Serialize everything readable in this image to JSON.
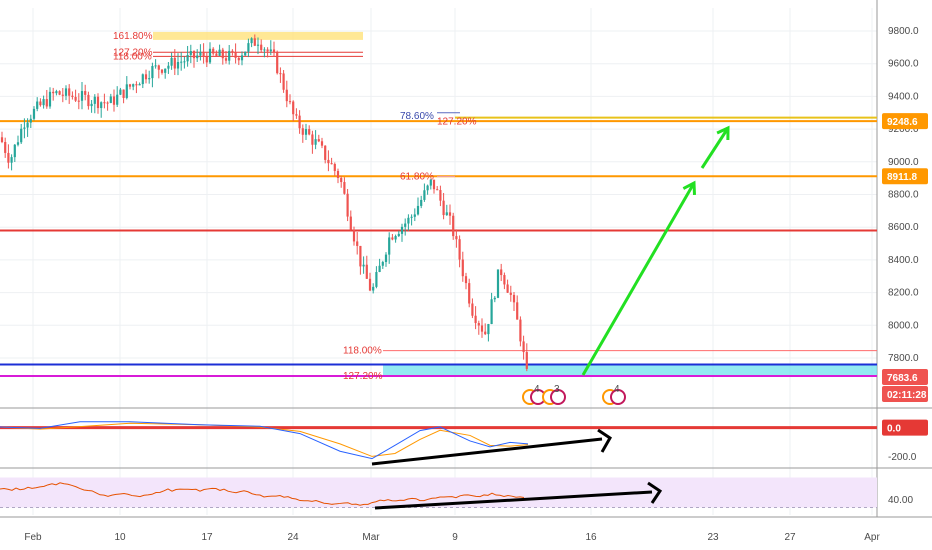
{
  "colors": {
    "up": "#26a69a",
    "down": "#ef5350",
    "orange_level": "#ff9800",
    "yellow_level": "#e8c21a",
    "red_level": "#e53935",
    "blue_level": "#1c2fd6",
    "magenta_level": "#d81bd8",
    "zone": "#6fe3ee",
    "arrow_green": "#22e022",
    "arrow_black": "#000000",
    "macd_line": "#2962ff",
    "signal_line": "#ff9800",
    "rsi_line": "#e65100",
    "rsi_band": "#f3e5fb"
  },
  "chart_data": [
    {
      "type": "candlestick",
      "title": "",
      "x_ticks": [
        "Feb",
        "10",
        "17",
        "24",
        "Mar",
        "9",
        "16",
        "23",
        "27",
        "Apr"
      ],
      "y_ticks": [
        "9800.0",
        "9600.0",
        "9400.0",
        "9200.0",
        "9000.0",
        "8800.0",
        "8600.0",
        "8400.0",
        "8200.0",
        "8000.0",
        "7800.0"
      ],
      "ylim": [
        7700,
        9900
      ],
      "price_anchors": [
        {
          "date": "Feb",
          "price": 9150
        },
        {
          "date": "Feb",
          "price": 9000
        },
        {
          "date": "10",
          "price": 9430
        },
        {
          "date": "17",
          "price": 9680
        },
        {
          "date": "17",
          "price": 9750
        },
        {
          "date": "24",
          "price": 9650
        },
        {
          "date": "24",
          "price": 9100
        },
        {
          "date": "Mar",
          "price": 8700
        },
        {
          "date": "Mar",
          "price": 8200
        },
        {
          "date": "Mar",
          "price": 8550
        },
        {
          "date": "9",
          "price": 8900
        },
        {
          "date": "9",
          "price": 8350
        },
        {
          "date": "9",
          "price": 7900
        },
        {
          "date": "9",
          "price": 8350
        },
        {
          "date": "9",
          "price": 7683.6
        }
      ],
      "levels": [
        {
          "price": 9248.6,
          "color": "orange_level",
          "tag": "9248.6"
        },
        {
          "price": 9270,
          "color": "yellow_level"
        },
        {
          "price": 8911.8,
          "color": "orange_level",
          "tag": "8911.8"
        },
        {
          "price": 8580,
          "color": "red_level"
        },
        {
          "price": 7760,
          "color": "blue_level"
        },
        {
          "price": 7690,
          "color": "magenta_level"
        }
      ],
      "current_price": {
        "value": "7683.6",
        "countdown": "02:11:28"
      },
      "fib_labels": [
        {
          "text": "161.80%",
          "price": 9770
        },
        {
          "text": "127.20%",
          "price": 9670
        },
        {
          "text": "118.00%",
          "price": 9645
        },
        {
          "text": "78.60%",
          "price": 9280
        },
        {
          "text": "127.20%",
          "price": 9245
        },
        {
          "text": "61.80%",
          "price": 8910
        },
        {
          "text": "118.00%",
          "price": 7845
        },
        {
          "text": "127.20%",
          "price": 7690
        }
      ],
      "event_badges": [
        {
          "date": "9",
          "count": "4"
        },
        {
          "date": "9",
          "count": "3"
        },
        {
          "date": "16",
          "count": "4"
        }
      ],
      "projection": [
        {
          "date": "16",
          "price": 7700
        },
        {
          "date": "23",
          "price": 8880
        },
        {
          "date": "23",
          "price": 9200
        }
      ]
    },
    {
      "type": "line",
      "title": "",
      "y_ticks": [
        "0.0",
        "-200.0"
      ],
      "ylim": [
        -260,
        120
      ],
      "zero_tag": "0.0"
    },
    {
      "type": "line",
      "title": "",
      "y_ticks": [
        "40.00"
      ],
      "ylim": [
        20,
        80
      ]
    }
  ]
}
